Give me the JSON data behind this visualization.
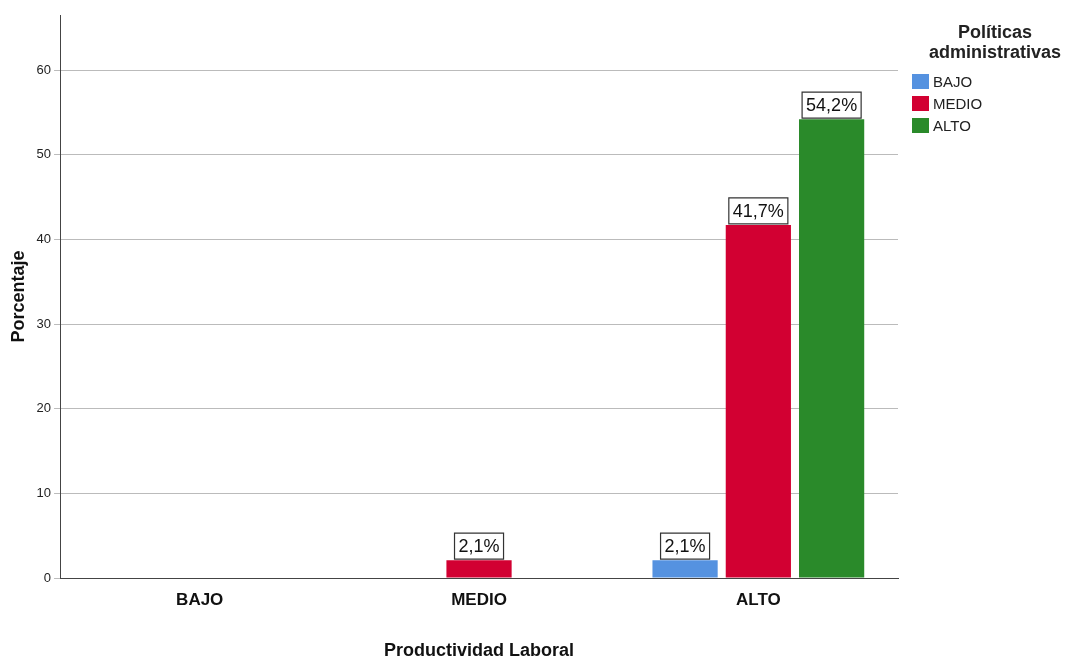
{
  "chart_data": {
    "type": "bar",
    "xlabel": "Productividad Laboral",
    "ylabel": "Porcentaje",
    "legend_title": "Políticas administrativas",
    "categories": [
      "BAJO",
      "MEDIO",
      "ALTO"
    ],
    "series": [
      {
        "name": "BAJO",
        "color": "#5592e0",
        "values": [
          null,
          null,
          2.1
        ],
        "value_labels": [
          null,
          null,
          "2,1%"
        ]
      },
      {
        "name": "MEDIO",
        "color": "#d20032",
        "values": [
          null,
          2.1,
          41.7
        ],
        "value_labels": [
          null,
          "2,1%",
          "41,7%"
        ]
      },
      {
        "name": "ALTO",
        "color": "#2a8a2a",
        "values": [
          null,
          null,
          54.2
        ],
        "value_labels": [
          null,
          null,
          "54,2%"
        ]
      }
    ],
    "ylim": [
      0,
      66.5
    ],
    "yticks": [
      0,
      10,
      20,
      30,
      40,
      50,
      60
    ],
    "grid": "y",
    "legend": "top right"
  }
}
